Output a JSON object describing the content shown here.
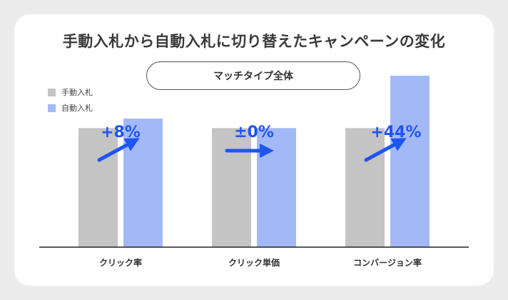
{
  "title": "手動入札から自動入札に切り替えたキャンペーンの変化",
  "filter_label": "マッチタイプ全体",
  "colors": {
    "manual": "#c4c4c4",
    "auto": "#a3b9f7",
    "accent": "#1f55f0",
    "axis": "#222222"
  },
  "chart_data": {
    "type": "bar",
    "title": "手動入札から自動入札に切り替えたキャンペーンの変化",
    "categories": [
      "クリック率",
      "クリック単価",
      "コンバージョン率"
    ],
    "series": [
      {
        "name": "手動入札",
        "values": [
          100,
          100,
          100
        ]
      },
      {
        "name": "自動入札",
        "values": [
          108,
          100,
          144
        ]
      }
    ],
    "changes": [
      "+8%",
      "±0%",
      "+44%"
    ],
    "ylim": [
      0,
      150
    ],
    "legend": "top-left",
    "grid": false
  }
}
